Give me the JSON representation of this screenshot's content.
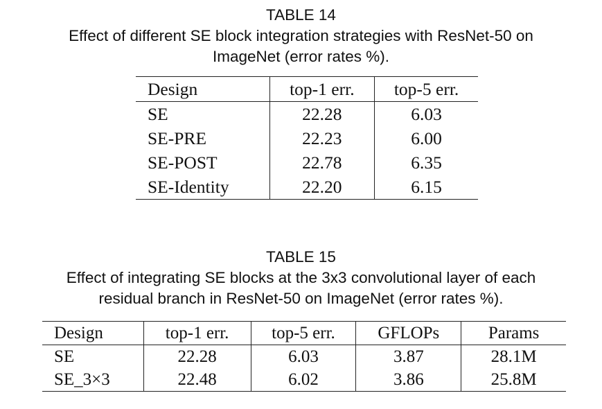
{
  "table14": {
    "label": "TABLE 14",
    "caption_line1": "Effect of different SE block integration strategies with ResNet-50 on",
    "caption_line2": "ImageNet (error rates %).",
    "headers": [
      "Design",
      "top-1 err.",
      "top-5 err."
    ],
    "rows": [
      [
        "SE",
        "22.28",
        "6.03"
      ],
      [
        "SE-PRE",
        "22.23",
        "6.00"
      ],
      [
        "SE-POST",
        "22.78",
        "6.35"
      ],
      [
        "SE-Identity",
        "22.20",
        "6.15"
      ]
    ]
  },
  "table15": {
    "label": "TABLE 15",
    "caption_line1": "Effect of integrating SE blocks at the 3x3 convolutional layer of each",
    "caption_line2": "residual branch in ResNet-50 on ImageNet (error rates %).",
    "headers": [
      "Design",
      "top-1 err.",
      "top-5 err.",
      "GFLOPs",
      "Params"
    ],
    "rows": [
      [
        "SE",
        "22.28",
        "6.03",
        "3.87",
        "28.1M"
      ],
      [
        "SE_3×3",
        "22.48",
        "6.02",
        "3.86",
        "25.8M"
      ]
    ]
  }
}
